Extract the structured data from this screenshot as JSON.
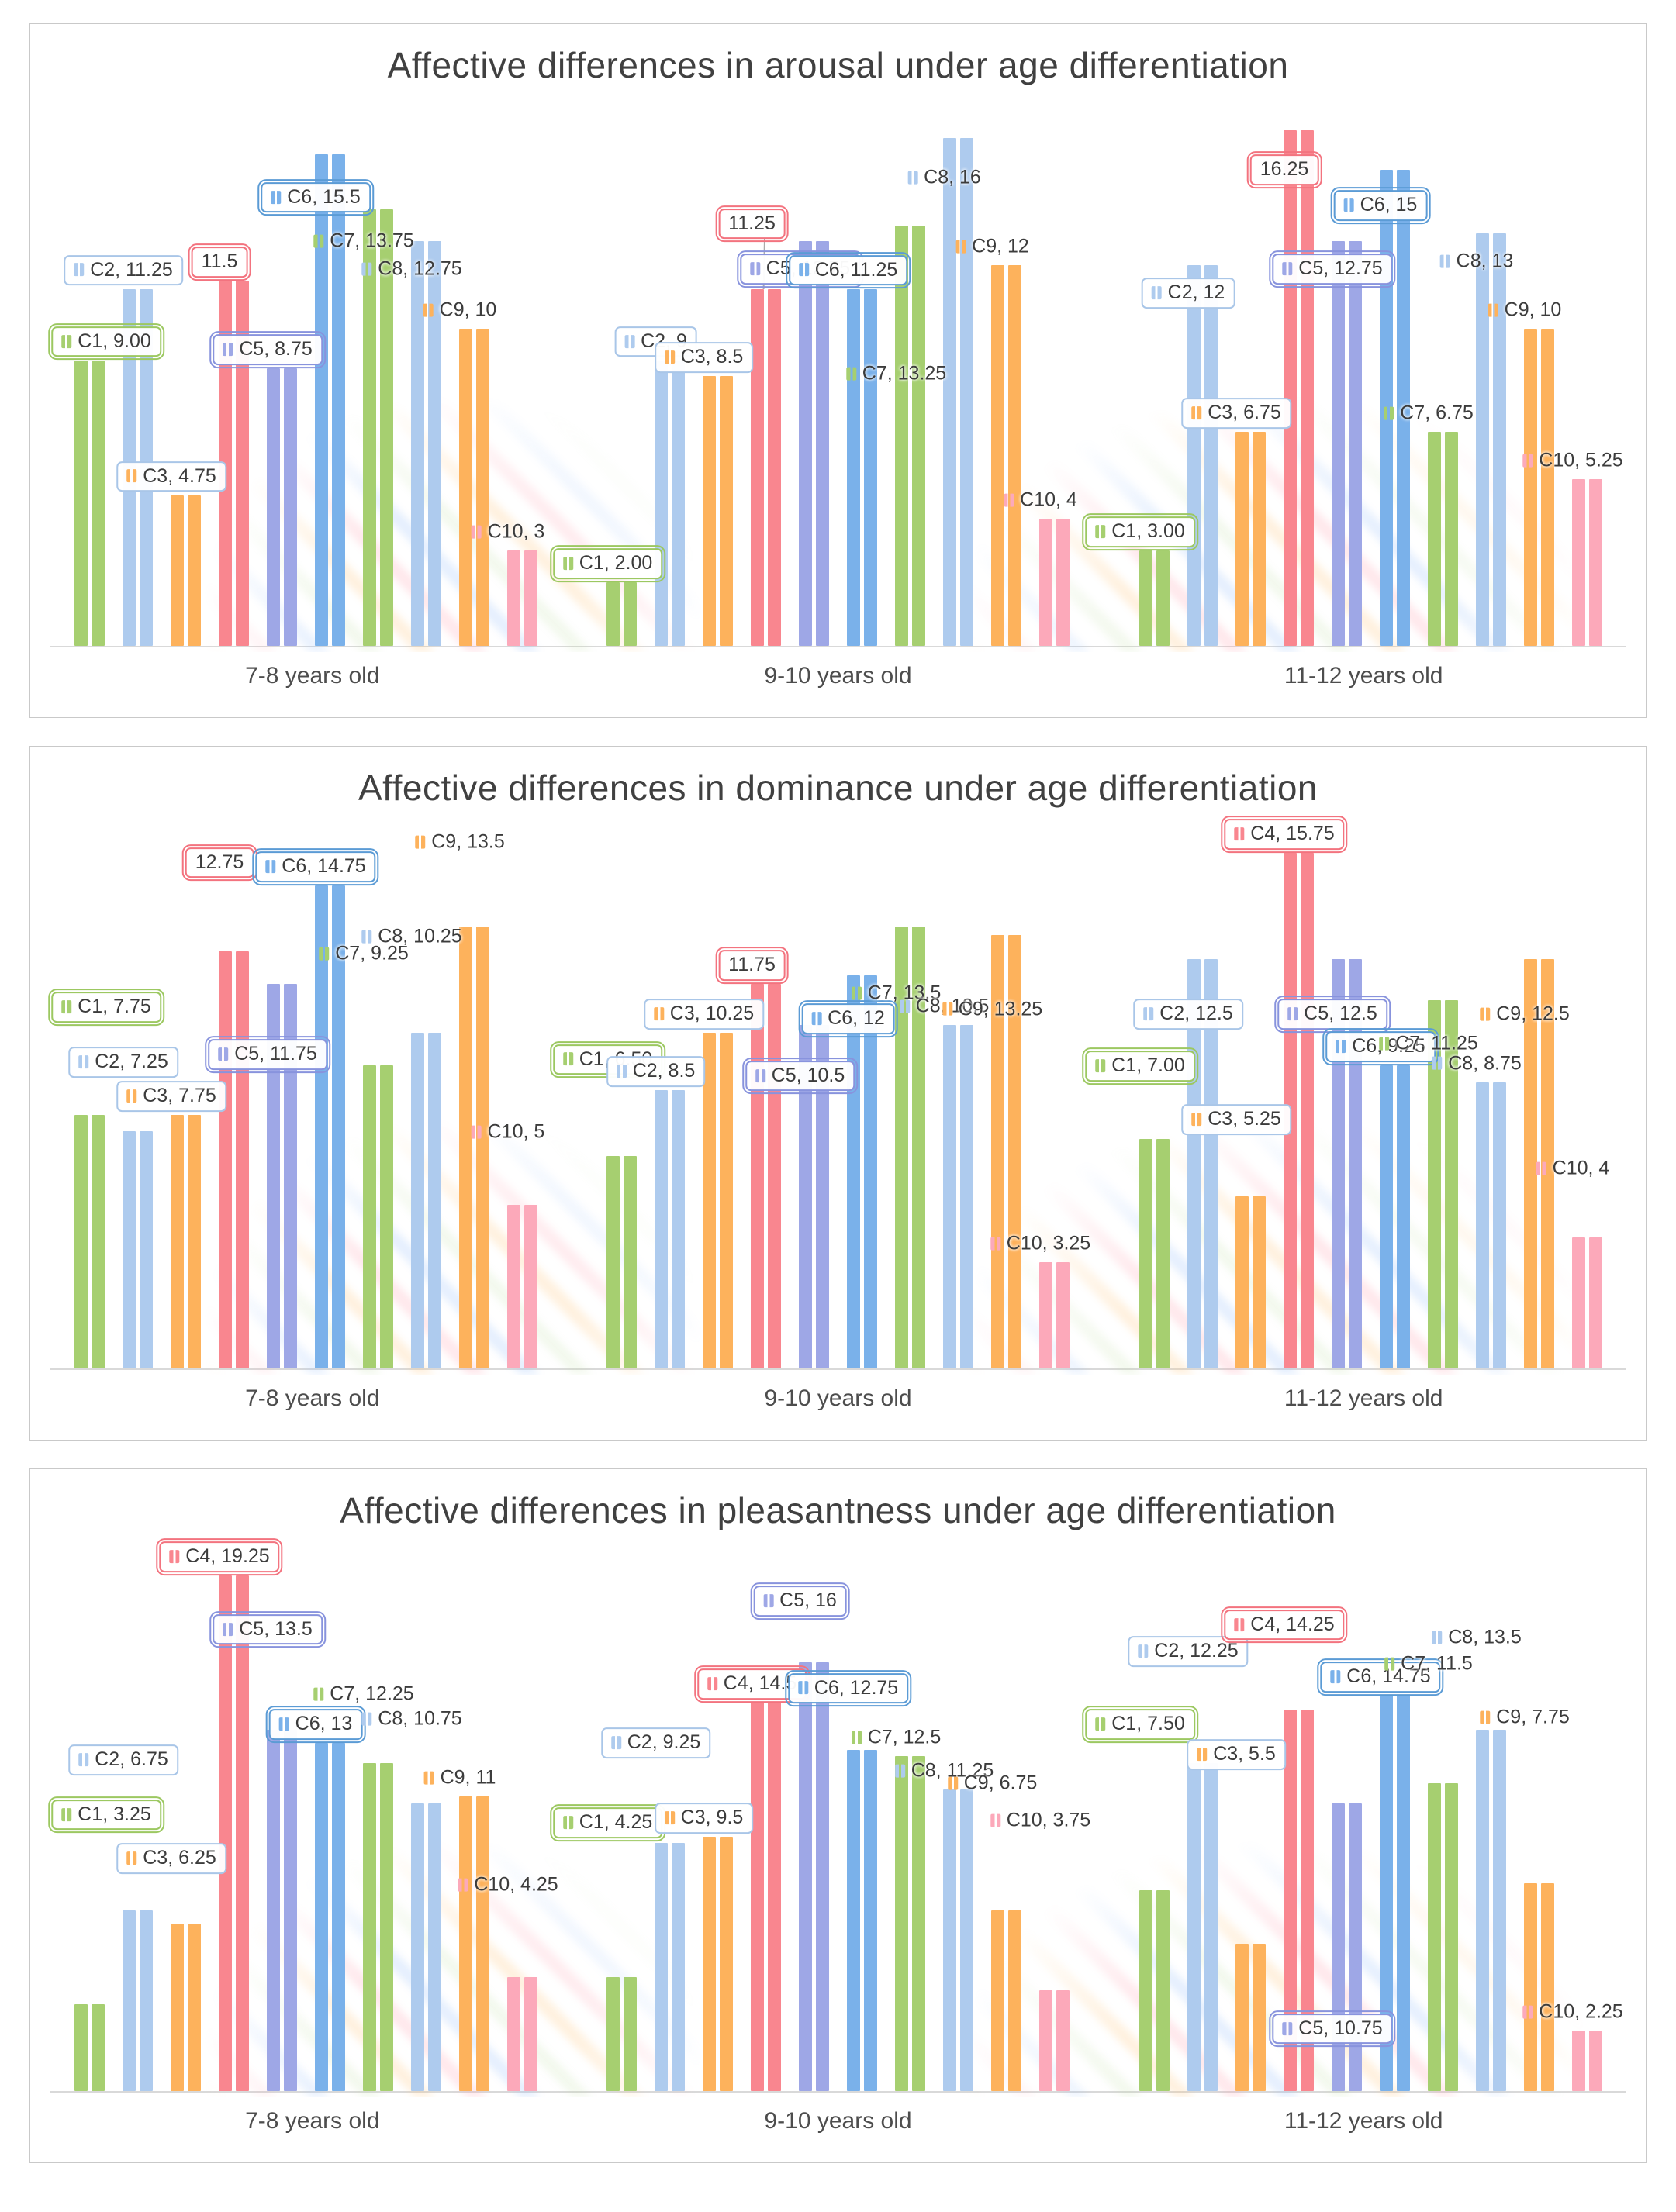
{
  "figure": {
    "background_color": "#ffffff",
    "panel_border_color": "#c9c9c9"
  },
  "chart_data": [
    {
      "type": "bar",
      "title": "Affective differences in arousal under age differentiation",
      "categories": [
        "7-8 years old",
        "9-10 years old",
        "11-12 years old"
      ],
      "xlabel": "",
      "ylabel": "",
      "ylim": [
        0,
        17
      ],
      "grid": false,
      "legend": "none",
      "series": [
        {
          "name": "C1",
          "color": "#A6CF70",
          "box_color": "#9CC861",
          "boxed": true,
          "ring": true,
          "values": [
            9,
            2,
            3
          ],
          "labels": [
            "C1, 9.00",
            "C1, 2.00",
            "C1, 3.00"
          ],
          "label_offset_y": [
            0,
            0,
            0
          ]
        },
        {
          "name": "C2",
          "color": "#AECBEE",
          "box_color": "#A9C6E8",
          "boxed": true,
          "ring": false,
          "values": [
            11.25,
            9,
            12
          ],
          "labels": [
            "C2, 11.25",
            "C2, 9",
            "C2, 12"
          ],
          "label_offset_y": [
            0,
            0,
            60
          ]
        },
        {
          "name": "C3",
          "color": "#FDB25C",
          "box_color": "#A9C6E8",
          "boxed": true,
          "ring": false,
          "values": [
            4.75,
            8.5,
            6.75
          ],
          "labels": [
            "C3, 4.75",
            "C3, 8.5",
            "C3, 6.75"
          ],
          "label_offset_y": [
            0,
            0,
            0
          ]
        },
        {
          "name": "C4",
          "color": "#F9868F",
          "box_color": "#F3737F",
          "boxed": true,
          "ring": true,
          "values": [
            11.5,
            11.25,
            16.25
          ],
          "labels": [
            "11.5",
            "11.25",
            "16.25"
          ],
          "icons": [
            false,
            false,
            false
          ],
          "label_offset_y": [
            0,
            -60,
            75
          ],
          "leader": [
            false,
            true,
            false
          ]
        },
        {
          "name": "C5",
          "color": "#9EA7E6",
          "box_color": "#8893DD",
          "boxed": true,
          "ring": true,
          "values": [
            8.75,
            12.75,
            12.75
          ],
          "labels": [
            "C5, 8.75",
            "C5, 12.75",
            "C5, 12.75"
          ],
          "label_offset_y": [
            0,
            60,
            60
          ]
        },
        {
          "name": "C6",
          "color": "#7AB1EA",
          "box_color": "#5B9BD5",
          "boxed": true,
          "ring": true,
          "values": [
            15.5,
            11.25,
            15
          ],
          "labels": [
            "C6, 15.5",
            "C6, 11.25",
            "C6, 15"
          ],
          "label_offset_y": [
            80,
            0,
            70
          ]
        },
        {
          "name": "C7",
          "color": "#A6CF70",
          "boxed": false,
          "ring": false,
          "values": [
            13.75,
            13.25,
            6.75
          ],
          "labels": [
            "C7, 13.75",
            "C7, 13.25",
            "C7, 6.75"
          ],
          "label_offset_y": [
            65,
            215,
            0
          ]
        },
        {
          "name": "C8",
          "color": "#AECBEE",
          "boxed": false,
          "ring": false,
          "values": [
            12.75,
            16,
            13
          ],
          "labels": [
            "C8, 12.75",
            "C8, 16",
            "C8, 13"
          ],
          "label_offset_y": [
            60,
            75,
            60
          ]
        },
        {
          "name": "C9",
          "color": "#FDB25C",
          "boxed": false,
          "ring": false,
          "values": [
            10,
            12,
            10
          ],
          "labels": [
            "C9, 10",
            "C9, 12",
            "C9, 10"
          ],
          "label_offset_y": [
            0,
            0,
            0
          ]
        },
        {
          "name": "C10",
          "color": "#FCA9BA",
          "boxed": false,
          "ring": false,
          "values": [
            3,
            4,
            5.25
          ],
          "labels": [
            "C10, 3",
            "C10, 4",
            "C10, 5.25"
          ],
          "label_offset_y": [
            0,
            0,
            0
          ]
        }
      ]
    },
    {
      "type": "bar",
      "title": "Affective differences in dominance under age differentiation",
      "categories": [
        "7-8 years old",
        "9-10 years old",
        "11-12 years old"
      ],
      "xlabel": "",
      "ylabel": "",
      "ylim": [
        0,
        16.5
      ],
      "grid": false,
      "legend": "none",
      "series": [
        {
          "name": "C1",
          "color": "#A6CF70",
          "box_color": "#9CC861",
          "boxed": true,
          "ring": true,
          "values": [
            7.75,
            6.5,
            7
          ],
          "labels": [
            "C1, 7.75",
            "C1, 6.50",
            "C1, 7.00"
          ],
          "label_offset_y": [
            -115,
            -100,
            -70
          ]
        },
        {
          "name": "C2",
          "color": "#AECBEE",
          "box_color": "#A9C6E8",
          "boxed": true,
          "ring": false,
          "values": [
            7.25,
            8.5,
            12.5
          ],
          "labels": [
            "C2, 7.25",
            "C2, 8.5",
            "C2, 12.5"
          ],
          "label_offset_y": [
            -65,
            0,
            95
          ]
        },
        {
          "name": "C3",
          "color": "#FDB25C",
          "box_color": "#A9C6E8",
          "boxed": true,
          "ring": false,
          "values": [
            7.75,
            10.25,
            5.25
          ],
          "labels": [
            "C3, 7.75",
            "C3, 10.25",
            "C3, 5.25"
          ],
          "label_offset_y": [
            0,
            0,
            -75
          ]
        },
        {
          "name": "C4",
          "color": "#F9868F",
          "box_color": "#F3737F",
          "boxed": true,
          "ring": true,
          "values": [
            12.75,
            11.75,
            15.75
          ],
          "labels": [
            "12.75",
            "11.75",
            "C4, 15.75"
          ],
          "icons": [
            false,
            false,
            true
          ],
          "label_offset_y": [
            -90,
            0,
            0
          ]
        },
        {
          "name": "C5",
          "color": "#9EA7E6",
          "box_color": "#8893DD",
          "boxed": true,
          "ring": true,
          "values": [
            11.75,
            10.5,
            12.5
          ],
          "labels": [
            "C5, 11.75",
            "C5, 10.5",
            "C5, 12.5"
          ],
          "label_offset_y": [
            115,
            90,
            95
          ]
        },
        {
          "name": "C6",
          "color": "#7AB1EA",
          "box_color": "#5B9BD5",
          "boxed": true,
          "ring": true,
          "values": [
            14.75,
            12,
            9.25
          ],
          "labels": [
            "C6, 14.75",
            "C6, 12",
            "C6, 9.25"
          ],
          "label_offset_y": [
            0,
            80,
            0
          ]
        },
        {
          "name": "C7",
          "color": "#A6CF70",
          "boxed": false,
          "ring": false,
          "values": [
            9.25,
            13.5,
            11.25
          ],
          "labels": [
            "C7, 9.25",
            "C7, 13.5",
            "C7, 11.25"
          ],
          "label_offset_y": [
            -120,
            110,
            80
          ]
        },
        {
          "name": "C8",
          "color": "#AECBEE",
          "boxed": false,
          "ring": false,
          "values": [
            10.25,
            10.5,
            8.75
          ],
          "labels": [
            "C8, 10.25",
            "C8, 10.5",
            "C8, 8.75"
          ],
          "label_offset_y": [
            -100,
            0,
            0
          ]
        },
        {
          "name": "C9",
          "color": "#FDB25C",
          "boxed": false,
          "ring": false,
          "values": [
            13.5,
            13.25,
            12.5
          ],
          "labels": [
            "C9, 13.5",
            "C9, 13.25",
            "C9, 12.5"
          ],
          "label_offset_y": [
            -85,
            120,
            95
          ]
        },
        {
          "name": "C10",
          "color": "#FCA9BA",
          "boxed": false,
          "ring": false,
          "values": [
            5,
            3.25,
            4
          ],
          "labels": [
            "C10, 5",
            "C10, 3.25",
            "C10, 4"
          ],
          "label_offset_y": [
            -70,
            0,
            -65
          ]
        }
      ]
    },
    {
      "type": "bar",
      "title": "Affective differences in pleasantness under age differentiation",
      "categories": [
        "7-8 years old",
        "9-10 years old",
        "11-12 years old"
      ],
      "xlabel": "",
      "ylabel": "",
      "ylim": [
        0,
        20
      ],
      "grid": false,
      "legend": "none",
      "series": [
        {
          "name": "C1",
          "color": "#A6CF70",
          "box_color": "#9CC861",
          "boxed": true,
          "ring": true,
          "values": [
            3.25,
            4.25,
            7.5
          ],
          "labels": [
            "C1, 3.25",
            "C1, 4.25",
            "C1, 7.50"
          ],
          "label_offset_y": [
            -220,
            -175,
            -190
          ]
        },
        {
          "name": "C2",
          "color": "#AECBEE",
          "box_color": "#A9C6E8",
          "boxed": true,
          "ring": false,
          "values": [
            6.75,
            9.25,
            12.25
          ],
          "labels": [
            "C2, 6.75",
            "C2, 9.25",
            "C2, 12.25"
          ],
          "label_offset_y": [
            -170,
            -105,
            -120
          ]
        },
        {
          "name": "C3",
          "color": "#FDB25C",
          "box_color": "#A9C6E8",
          "boxed": true,
          "ring": false,
          "values": [
            6.25,
            9.5,
            5.5
          ],
          "labels": [
            "C3, 6.25",
            "C3, 9.5",
            "C3, 5.5"
          ],
          "label_offset_y": [
            -60,
            0,
            -220
          ]
        },
        {
          "name": "C4",
          "color": "#F9868F",
          "box_color": "#F3737F",
          "boxed": true,
          "ring": true,
          "values": [
            19.25,
            14.5,
            14.25
          ],
          "labels": [
            "C4, 19.25",
            "C4, 14.5",
            "C4, 14.25"
          ],
          "label_offset_y": [
            0,
            0,
            -85
          ]
        },
        {
          "name": "C5",
          "color": "#9EA7E6",
          "box_color": "#8893DD",
          "boxed": true,
          "ring": true,
          "values": [
            13.5,
            16,
            10.75
          ],
          "labels": [
            "C5, 13.5",
            "C5, 16",
            "C5, 10.75"
          ],
          "label_offset_y": [
            -105,
            -55,
            315
          ]
        },
        {
          "name": "C6",
          "color": "#7AB1EA",
          "box_color": "#5B9BD5",
          "boxed": true,
          "ring": true,
          "values": [
            13,
            12.75,
            14.75
          ],
          "labels": [
            "C6, 13",
            "C6, 12.75",
            "C6, 14.75"
          ],
          "label_offset_y": [
            0,
            -55,
            0
          ]
        },
        {
          "name": "C7",
          "color": "#A6CF70",
          "boxed": false,
          "ring": false,
          "values": [
            12.25,
            12.5,
            11.5
          ],
          "labels": [
            "C7, 12.25",
            "C7, 12.5",
            "C7, 11.5"
          ],
          "label_offset_y": [
            -65,
            0,
            -130
          ]
        },
        {
          "name": "C8",
          "color": "#AECBEE",
          "boxed": false,
          "ring": false,
          "values": [
            10.75,
            11.25,
            13.5
          ],
          "labels": [
            "C8, 10.75",
            "C8, 11.25",
            "C8, 13.5"
          ],
          "label_offset_y": [
            -85,
            0,
            -95
          ]
        },
        {
          "name": "C9",
          "color": "#FDB25C",
          "boxed": false,
          "ring": false,
          "values": [
            11,
            6.75,
            7.75
          ],
          "labels": [
            "C9, 11",
            "C9, 6.75",
            "C9, 7.75"
          ],
          "label_offset_y": [
            0,
            -140,
            -190
          ]
        },
        {
          "name": "C10",
          "color": "#FCA9BA",
          "boxed": false,
          "ring": false,
          "values": [
            4.25,
            3.75,
            2.25
          ],
          "labels": [
            "C10, 4.25",
            "C10, 3.75",
            "C10, 2.25"
          ],
          "label_offset_y": [
            -95,
            -195,
            0
          ]
        }
      ]
    }
  ]
}
